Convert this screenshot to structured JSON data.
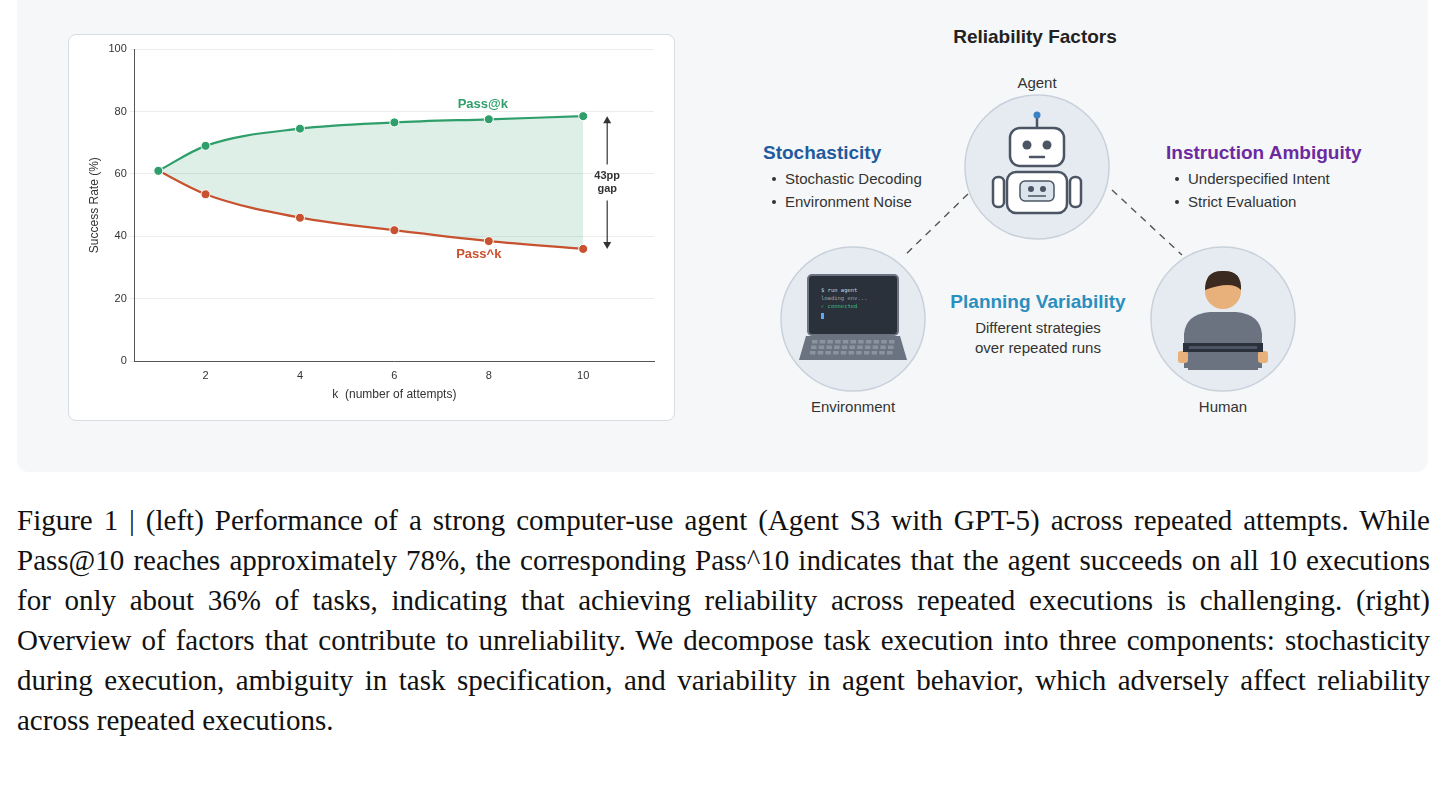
{
  "chart_data": {
    "type": "line",
    "x": [
      1,
      2,
      4,
      6,
      8,
      10
    ],
    "series": [
      {
        "name": "Pass@k",
        "color": "#2e9e6b",
        "values": [
          61,
          69,
          74.5,
          76.5,
          77.5,
          78.5
        ],
        "marker": "circle",
        "line_style": "solid"
      },
      {
        "name": "Pass^k",
        "color": "#c8512f",
        "values": [
          61,
          53.5,
          46,
          42,
          38.5,
          36
        ],
        "marker": "circle",
        "line_style": "solid"
      }
    ],
    "x_label": "k  (number of attempts)",
    "y_label": "Success Rate (%)",
    "xlim": [
      0.5,
      11.5
    ],
    "xticks": [
      2,
      4,
      6,
      8,
      10
    ],
    "ylim": [
      0,
      100
    ],
    "yticks": [
      0,
      20,
      40,
      60,
      80,
      100
    ],
    "grid": "y",
    "annotations": [
      "43pp gap"
    ]
  },
  "diagram": {
    "title": "Reliability Factors",
    "nodes": [
      {
        "label": "Agent"
      },
      {
        "label": "Environment",
        "screen_lines": [
          "$ run agent",
          "loading env...",
          "✓ connected"
        ]
      },
      {
        "label": "Human"
      }
    ],
    "factors": [
      {
        "title": "Stochasticity",
        "items": [
          "Stochastic Decoding",
          "Environment Noise"
        ]
      },
      {
        "title": "Instruction Ambiguity",
        "items": [
          "Underspecified Intent",
          "Strict Evaluation"
        ]
      },
      {
        "title": "Planning Variability",
        "description": [
          "Different strategies",
          "over repeated runs"
        ]
      }
    ]
  },
  "caption": "Figure 1 | (left) Performance of a strong computer-use agent (Agent S3 with GPT-5) across repeated attempts. While Pass@10 reaches approximately 78%, the corresponding Pass^10 indicates that the agent succeeds on all 10 executions for only about 36% of tasks, indicating that achieving reliability across repeated executions is challenging. (right) Overview of factors that contribute to unreliability. We decompose task execution into three components: stochasticity during execution, ambiguity in task specification, and variability in agent behavior, which adversely affect reliability across repeated executions."
}
